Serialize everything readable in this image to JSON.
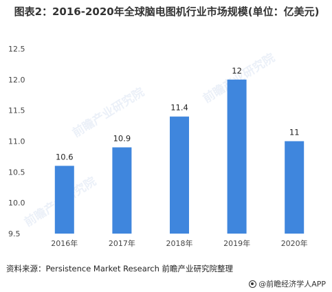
{
  "chart_data": {
    "type": "bar",
    "title": "图表2：2016-2020年全球脑电图机行业市场规模(单位：亿美元)",
    "xlabel": "",
    "ylabel": "",
    "categories": [
      "2016年",
      "2017年",
      "2018年",
      "2019年",
      "2020年"
    ],
    "values": [
      10.6,
      10.9,
      11.4,
      12,
      11
    ],
    "value_labels": [
      "10.6",
      "10.9",
      "11.4",
      "12",
      "11"
    ],
    "ylim": [
      9.5,
      12.5
    ],
    "yticks": [
      9.5,
      10.0,
      10.5,
      11.0,
      11.5,
      12.0,
      12.5
    ],
    "ytick_labels": [
      "9.5",
      "10.0",
      "10.5",
      "11.0",
      "11.5",
      "12.0",
      "12.5"
    ],
    "grid": false,
    "bar_color": "#3f86dd"
  },
  "footer": {
    "source": "资料来源：Persistence Market Research 前瞻产业研究院整理",
    "brand": "@前瞻经济学人APP"
  },
  "watermark": {
    "text": "前瞻产业研究院"
  },
  "icons": {
    "brand_icon": "brand-logo-icon"
  }
}
